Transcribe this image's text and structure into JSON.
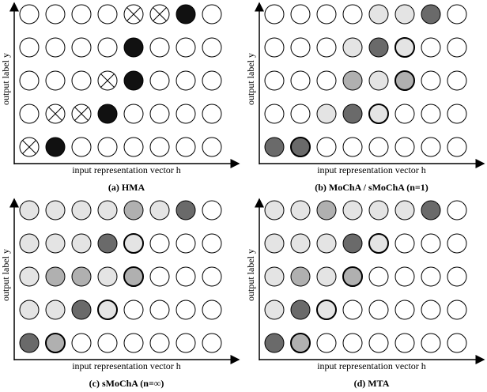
{
  "panels": [
    {
      "caption": "(a) HMA",
      "y_label": "output label y",
      "x_label": "input representation vector h"
    },
    {
      "caption": "(b) MoChA / sMoChA (n=1)",
      "y_label": "output label y",
      "x_label": "input representation vector h"
    },
    {
      "caption": "(c) sMoChA (n=∞)",
      "y_label": "output label y",
      "x_label": "input representation vector h"
    },
    {
      "caption": "(d) MTA",
      "y_label": "output label y",
      "x_label": "input representation vector h"
    }
  ]
}
